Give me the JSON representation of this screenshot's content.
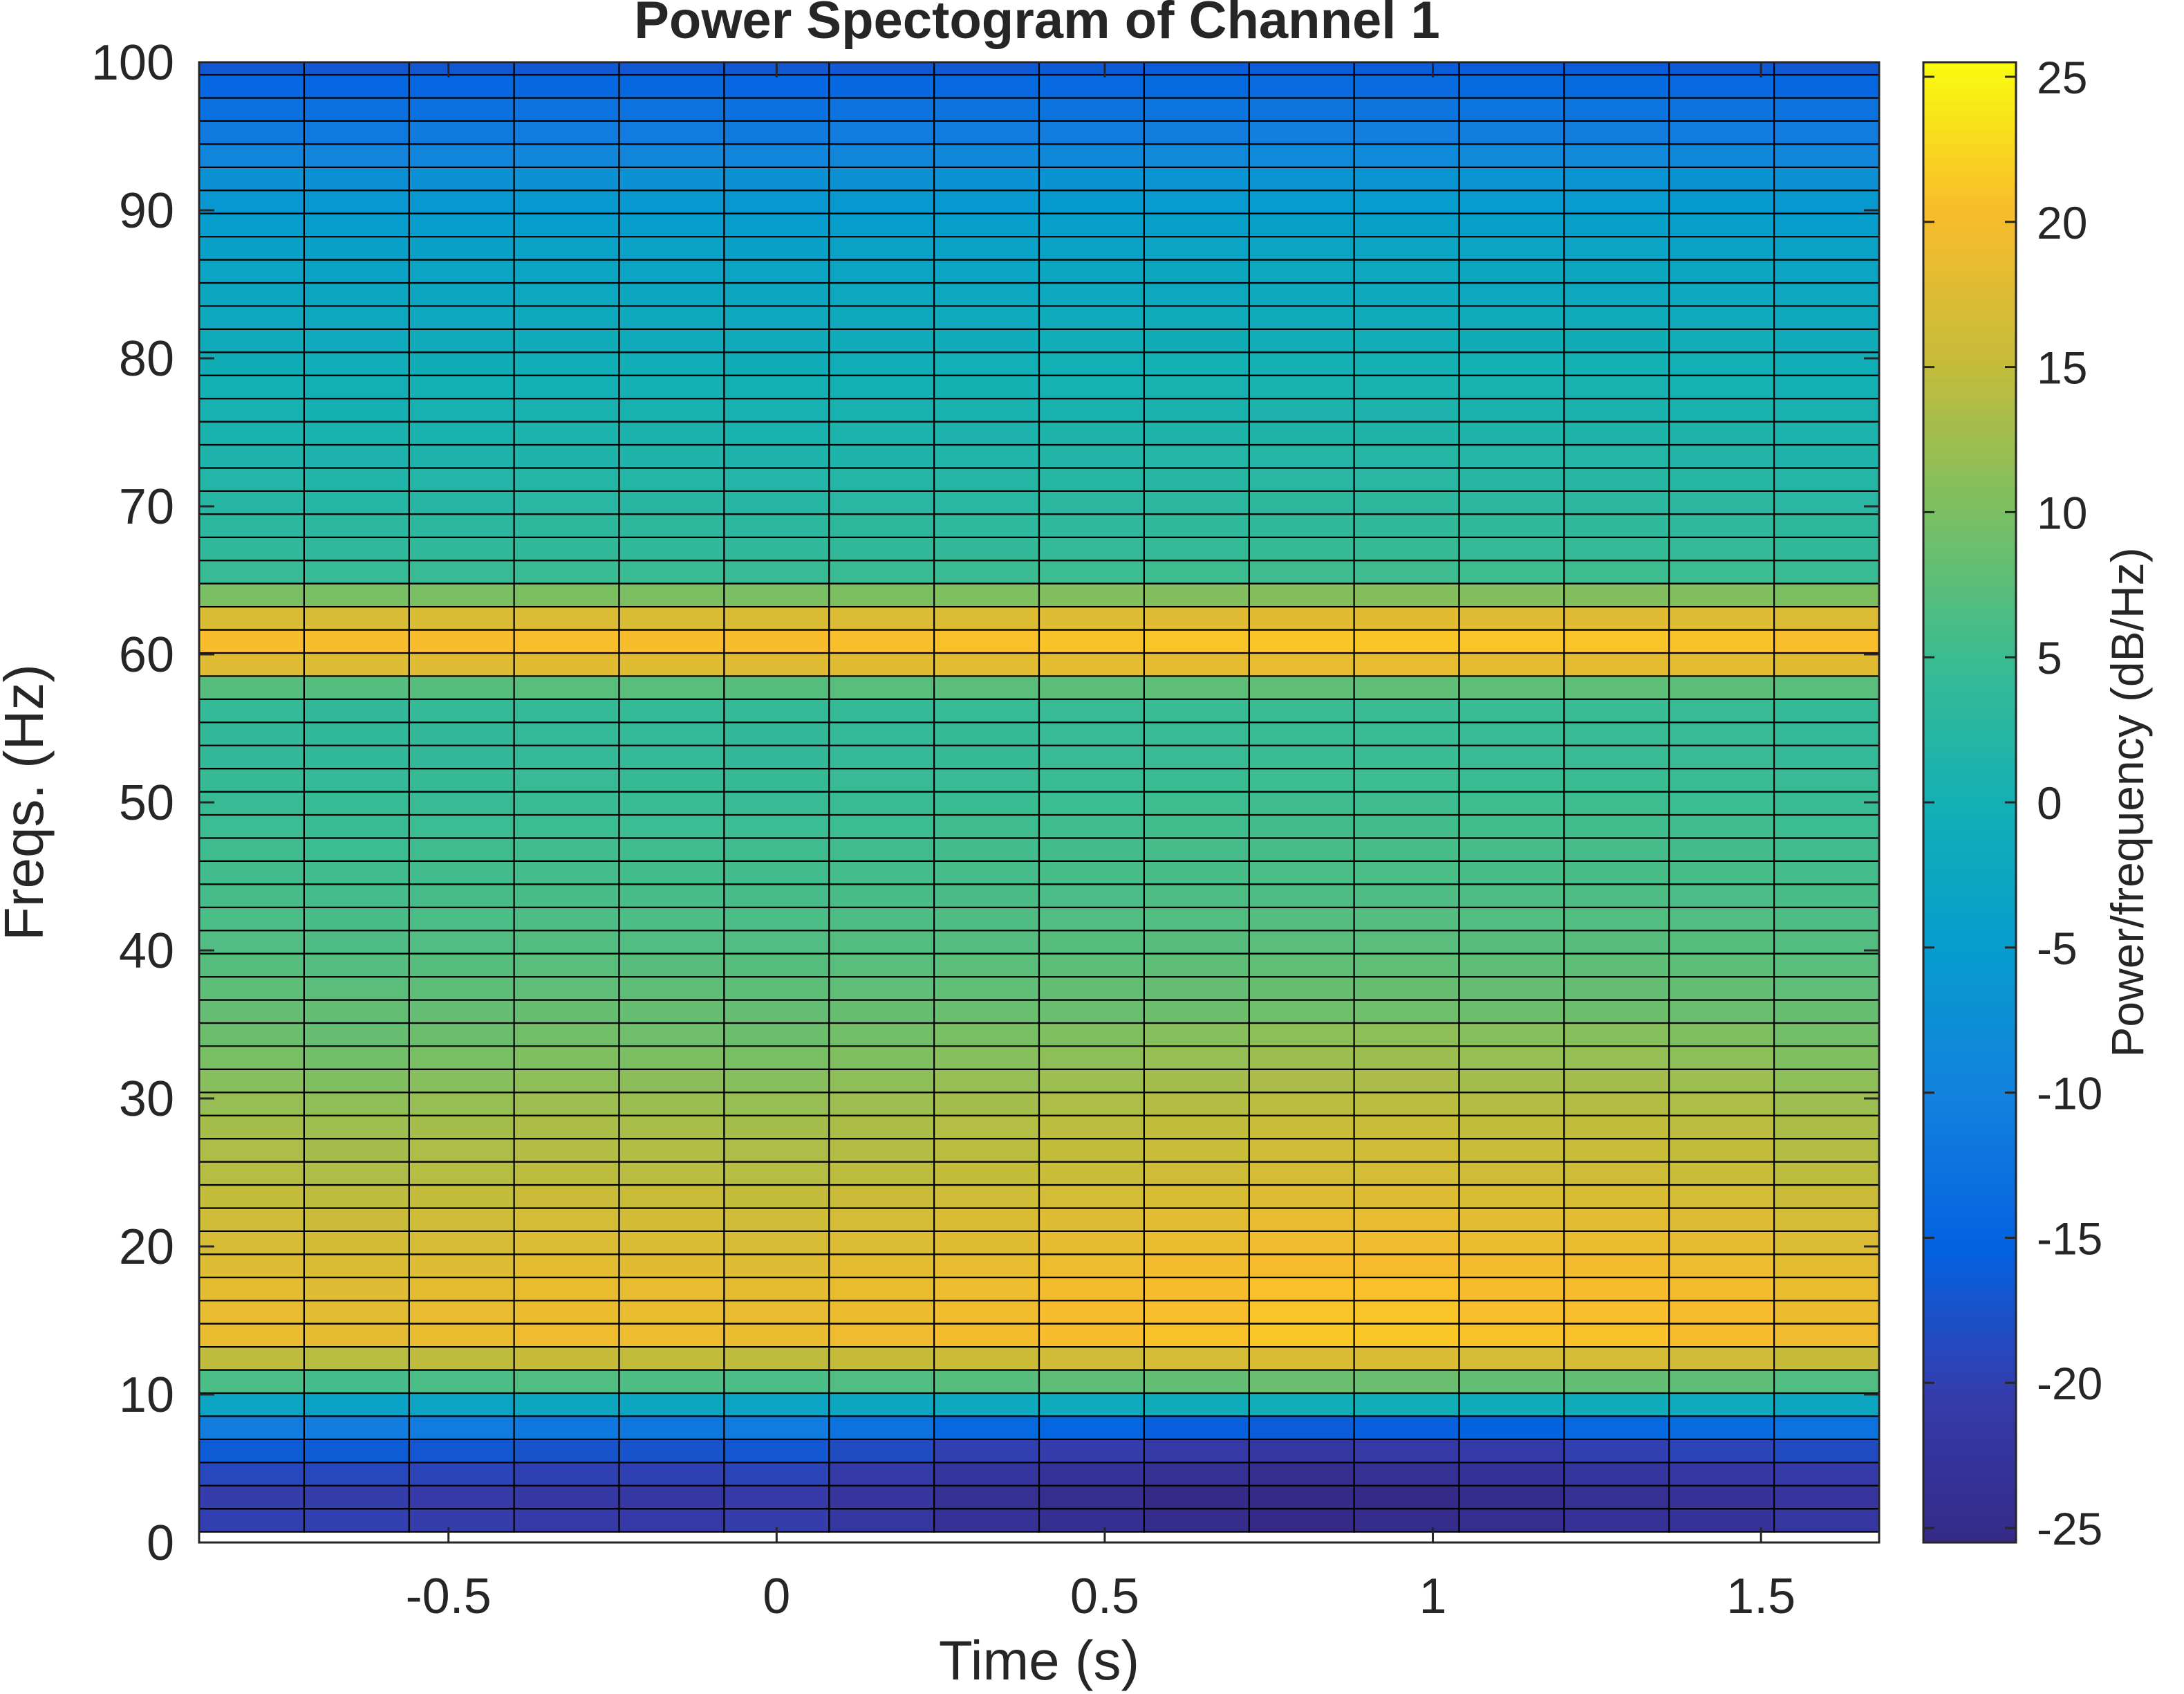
{
  "chart_data": {
    "type": "heatmap",
    "title": "Power Spectogram of Channel 1",
    "xlabel": "Time (s)",
    "ylabel": "Freqs. (Hz)",
    "colorbar_label": "Power/frequency (dB/Hz)",
    "colormap": "parula",
    "xlim": [
      -0.88,
      1.68
    ],
    "ylim": [
      0,
      100
    ],
    "clim": [
      -25.5,
      25.5
    ],
    "x_ticks": [
      -0.5,
      0,
      0.5,
      1,
      1.5
    ],
    "x_tick_labels": [
      "-0.5",
      "0",
      "0.5",
      "1",
      "1.5"
    ],
    "y_ticks": [
      0,
      10,
      20,
      30,
      40,
      50,
      60,
      70,
      80,
      90,
      100
    ],
    "y_tick_labels": [
      "0",
      "10",
      "20",
      "30",
      "40",
      "50",
      "60",
      "70",
      "80",
      "90",
      "100"
    ],
    "colorbar_ticks": [
      -25,
      -20,
      -15,
      -10,
      -5,
      0,
      5,
      10,
      15,
      20,
      25
    ],
    "colorbar_tick_labels": [
      "-25",
      "-20",
      "-15",
      "-10",
      "-5",
      "0",
      "5",
      "10",
      "15",
      "20",
      "25"
    ],
    "time_bins": [
      -0.8,
      -0.64,
      -0.48,
      -0.32,
      -0.16,
      0,
      0.16,
      0.32,
      0.48,
      0.64,
      0.8,
      0.96,
      1.12,
      1.28,
      1.44,
      1.6
    ],
    "freq_range": [
      1.5,
      100
    ],
    "freq_bin_width": 1.5625,
    "power_profile_db": [
      [
        1.5,
        -21
      ],
      [
        3,
        -21.5
      ],
      [
        4.5,
        -20
      ],
      [
        6,
        -18
      ],
      [
        7.5,
        -13
      ],
      [
        9,
        -5
      ],
      [
        10.5,
        4
      ],
      [
        12,
        13
      ],
      [
        13.5,
        19
      ],
      [
        16,
        18.5
      ],
      [
        18,
        18
      ],
      [
        20,
        17
      ],
      [
        22,
        16
      ],
      [
        25,
        14
      ],
      [
        28,
        13
      ],
      [
        31,
        11
      ],
      [
        34,
        9
      ],
      [
        38,
        7.5
      ],
      [
        43,
        6
      ],
      [
        48,
        5
      ],
      [
        53,
        4
      ],
      [
        56,
        4
      ],
      [
        57.5,
        5
      ],
      [
        58.5,
        14
      ],
      [
        60,
        21
      ],
      [
        61.5,
        20
      ],
      [
        63.5,
        14
      ],
      [
        64.5,
        6
      ],
      [
        66,
        4
      ],
      [
        69,
        3
      ],
      [
        73,
        1.5
      ],
      [
        78,
        0
      ],
      [
        83,
        -2
      ],
      [
        88,
        -4
      ],
      [
        92,
        -7
      ],
      [
        95,
        -11
      ],
      [
        98,
        -14
      ],
      [
        100,
        -17
      ]
    ],
    "time_offset_db": [
      0,
      -0.5,
      0,
      0.5,
      0.3,
      0,
      0.5,
      1,
      1.5,
      2,
      2.5,
      2.5,
      2,
      2,
      1.5,
      0.5
    ],
    "low_freq_time_offset_db": [
      1,
      1,
      0.5,
      0,
      0,
      0.5,
      -1,
      -2.5,
      -3,
      -4,
      -4.5,
      -4,
      -3.5,
      -2.5,
      -2,
      -1
    ]
  }
}
